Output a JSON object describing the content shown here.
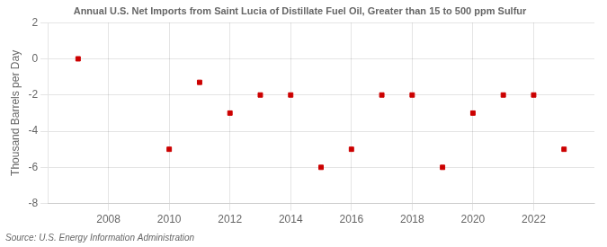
{
  "chart_data": {
    "type": "scatter",
    "title": "Annual U.S. Net Imports from Saint Lucia of Distillate Fuel Oil, Greater than 15 to 500 ppm Sulfur",
    "ylabel": "Thousand Barrels per Day",
    "source": "Source: U.S. Energy Information Administration",
    "x": [
      2007,
      2010,
      2011,
      2012,
      2013,
      2014,
      2015,
      2016,
      2017,
      2018,
      2019,
      2020,
      2021,
      2022,
      2023
    ],
    "values": [
      0,
      -5,
      -1.3,
      -3,
      -2,
      -2,
      -6,
      -5,
      -2,
      -2,
      -6,
      -3,
      -2,
      -2,
      -5
    ],
    "color": "#cc0000",
    "marker": "square",
    "xlim": [
      2006.0,
      2024.0
    ],
    "ylim": [
      -8,
      2
    ],
    "xticks": [
      2008,
      2010,
      2012,
      2014,
      2016,
      2018,
      2020,
      2022
    ],
    "yticks": [
      -8,
      -6,
      -4,
      -2,
      0,
      2
    ],
    "grid": true
  }
}
